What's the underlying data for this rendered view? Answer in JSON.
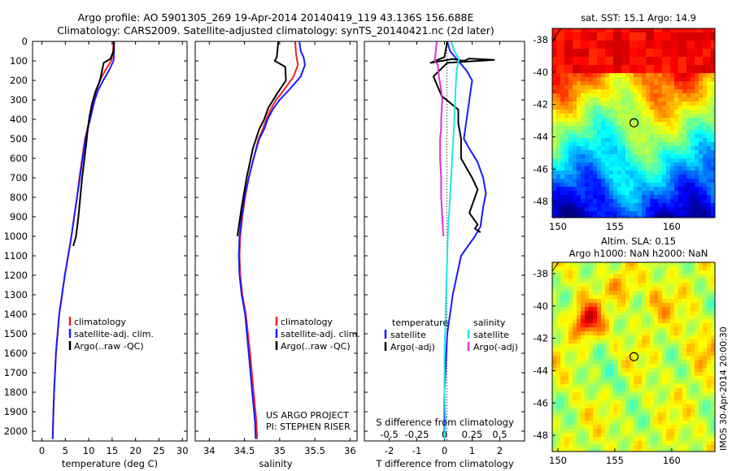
{
  "title": {
    "line1": "Argo profile: AO 5901305_269 19-Apr-2014 20140419_119 43.136S 156.688E",
    "line2": "Climatology: CARS2009. Satellite-adjusted climatology: synTS_20140421.nc (2d later)"
  },
  "colors": {
    "climatology": "#ee2222",
    "satellite": "#1a1aff",
    "argo": "#000000",
    "satellite_salinity": "#22e5e5",
    "argo_salinity": "#dd33dd"
  },
  "chart_data": [
    {
      "id": "temperature",
      "type": "line",
      "xlabel": "temperature (deg C)",
      "ylabel": "",
      "xlim": [
        -2,
        31
      ],
      "ylim": [
        2050,
        0
      ],
      "xticks": [
        0,
        5,
        10,
        15,
        20,
        25,
        30
      ],
      "yticks": [
        0,
        100,
        200,
        300,
        400,
        500,
        600,
        700,
        800,
        900,
        1000,
        1100,
        1200,
        1300,
        1400,
        1500,
        1600,
        1700,
        1800,
        1900,
        2000
      ],
      "legend": [
        "climatology",
        "satellite-adj. clim.",
        "Argo(..raw -QC)"
      ],
      "legend_position": "lower-right",
      "series": [
        {
          "name": "climatology",
          "color": "#ee2222",
          "x": [
            15.3,
            15.2,
            14.8,
            13.5,
            12.4,
            11.6,
            11.1,
            10.7,
            10.2,
            9.7,
            9.2,
            8.6,
            8.0,
            7.5,
            6.9,
            6.3,
            5.6,
            4.9,
            4.3,
            3.7,
            3.0,
            2.6,
            2.4,
            2.3
          ],
          "y": [
            0,
            50,
            100,
            150,
            200,
            250,
            300,
            350,
            400,
            450,
            500,
            600,
            700,
            800,
            900,
            1000,
            1100,
            1200,
            1300,
            1400,
            1600,
            1800,
            1950,
            2040
          ]
        },
        {
          "name": "satellite-adj. clim.",
          "color": "#1a1aff",
          "x": [
            15.4,
            15.4,
            15.3,
            14.3,
            13.1,
            12.0,
            11.3,
            10.8,
            10.3,
            9.8,
            9.3,
            8.7,
            8.1,
            7.5,
            6.9,
            6.3,
            5.6,
            4.9,
            4.3,
            3.7,
            3.0,
            2.6,
            2.4,
            2.3
          ],
          "y": [
            0,
            50,
            100,
            150,
            200,
            250,
            300,
            350,
            400,
            450,
            500,
            600,
            700,
            800,
            900,
            1000,
            1100,
            1200,
            1300,
            1400,
            1600,
            1800,
            1950,
            2040
          ]
        },
        {
          "name": "Argo(..raw -QC)",
          "color": "#000000",
          "x": [
            15.4,
            15.3,
            14.6,
            13.2,
            12.4,
            11.4,
            10.7,
            10.2,
            9.8,
            9.5,
            9.1,
            8.6,
            8.2,
            7.8,
            7.3,
            6.7
          ],
          "y": [
            0,
            50,
            90,
            110,
            200,
            260,
            320,
            380,
            450,
            520,
            600,
            700,
            800,
            900,
            1000,
            1050
          ]
        }
      ]
    },
    {
      "id": "salinity",
      "type": "line",
      "xlabel": "salinity",
      "ylabel": "",
      "xlim": [
        33.8,
        36.1
      ],
      "ylim": [
        2050,
        0
      ],
      "xticks": [
        34,
        34.5,
        35,
        35.5,
        36
      ],
      "legend": [
        "climatology",
        "satellite-adj. clim.",
        "Argo(..raw -QC)"
      ],
      "legend_position": "lower-right",
      "annotation": [
        "US ARGO PROJECT",
        "PI: STEPHEN RISER"
      ],
      "series": [
        {
          "name": "climatology",
          "color": "#ee2222",
          "x": [
            35.22,
            35.23,
            35.24,
            35.26,
            35.2,
            35.06,
            34.95,
            34.87,
            34.81,
            34.76,
            34.7,
            34.63,
            34.56,
            34.51,
            34.47,
            34.44,
            34.43,
            34.44,
            34.47,
            34.52,
            34.58,
            34.63,
            34.67,
            34.68
          ],
          "y": [
            0,
            50,
            80,
            120,
            180,
            250,
            300,
            350,
            400,
            450,
            500,
            600,
            700,
            800,
            900,
            1000,
            1100,
            1200,
            1300,
            1400,
            1600,
            1800,
            1950,
            2040
          ]
        },
        {
          "name": "satellite-adj. clim.",
          "color": "#1a1aff",
          "x": [
            35.28,
            35.3,
            35.34,
            35.36,
            35.3,
            35.13,
            35.0,
            34.9,
            34.83,
            34.78,
            34.71,
            34.63,
            34.56,
            34.5,
            34.46,
            34.43,
            34.42,
            34.43,
            34.46,
            34.51,
            34.56,
            34.61,
            34.65,
            34.66
          ],
          "y": [
            0,
            50,
            80,
            120,
            180,
            250,
            300,
            350,
            400,
            450,
            500,
            600,
            700,
            800,
            900,
            1000,
            1100,
            1200,
            1300,
            1400,
            1600,
            1800,
            1950,
            2040
          ]
        },
        {
          "name": "Argo(..raw -QC)",
          "color": "#000000",
          "x": [
            34.98,
            34.96,
            34.93,
            34.98,
            35.08,
            35.09,
            34.96,
            34.84,
            34.78,
            34.71,
            34.62,
            34.53,
            34.46,
            34.42,
            34.4
          ],
          "y": [
            0,
            80,
            100,
            110,
            130,
            200,
            270,
            340,
            400,
            450,
            550,
            700,
            850,
            950,
            1000
          ]
        }
      ]
    },
    {
      "id": "difference",
      "type": "line",
      "xlabel": "T difference from climatology",
      "xlabel_top": "S difference from climatology",
      "ylabel": "",
      "xlim": [
        -2.9,
        2.9
      ],
      "ylim": [
        2050,
        0
      ],
      "xticks": [
        -2,
        -1,
        0,
        1,
        2
      ],
      "s_xticks": [
        -0.5,
        -0.25,
        0,
        0.25,
        0.5
      ],
      "legend_groups": [
        {
          "title": "temperature",
          "items": [
            "satellite",
            "Argo(-adj)"
          ]
        },
        {
          "title": "salinity",
          "items": [
            "satellite",
            "Argo(-adj)"
          ]
        }
      ],
      "legend_position": "lower-center",
      "series": [
        {
          "name": "temperature satellite",
          "color": "#1a1aff",
          "x": [
            0.1,
            0.2,
            0.5,
            0.8,
            1.0,
            0.9,
            0.8,
            0.7,
            0.9,
            1.2,
            1.4,
            1.5,
            1.4,
            1.3,
            1.1,
            0.6,
            0.3,
            0.1,
            0.0,
            0.0
          ],
          "y": [
            0,
            50,
            100,
            150,
            200,
            300,
            400,
            500,
            550,
            620,
            700,
            780,
            850,
            950,
            1000,
            1100,
            1300,
            1500,
            1800,
            2040
          ]
        },
        {
          "name": "temperature Argo(-adj)",
          "color": "#000000",
          "x": [
            0.1,
            0.0,
            -0.5,
            0.3,
            0.7,
            0.9,
            1.8,
            0.1,
            -0.4,
            -0.1,
            0.5,
            0.5,
            0.6,
            0.6,
            0.8,
            1.0,
            1.2,
            1.1,
            1.0,
            0.9,
            1.2,
            1.1,
            1.3
          ],
          "y": [
            0,
            80,
            110,
            90,
            100,
            88,
            95,
            110,
            180,
            280,
            350,
            420,
            500,
            600,
            650,
            700,
            760,
            800,
            840,
            880,
            940,
            960,
            980
          ]
        },
        {
          "name": "salinity satellite",
          "color": "#22e5e5",
          "x": [
            0.06,
            0.09,
            0.13,
            0.11,
            0.1,
            0.09,
            0.07,
            0.05,
            0.03,
            0.02,
            0.01,
            0.0,
            0.0,
            0.01,
            0.0
          ],
          "y": [
            0,
            50,
            90,
            150,
            250,
            400,
            600,
            800,
            1000,
            1200,
            1400,
            1600,
            1800,
            1950,
            2040
          ]
        },
        {
          "name": "salinity Argo(-adj)",
          "color": "#dd33dd",
          "x": [
            -0.07,
            -0.08,
            -0.09,
            -0.06,
            -0.05,
            -0.03,
            -0.02,
            -0.03,
            -0.03,
            -0.04,
            -0.04,
            -0.03,
            -0.03,
            -0.02,
            -0.01
          ],
          "y": [
            0,
            60,
            100,
            120,
            180,
            250,
            300,
            400,
            450,
            500,
            600,
            700,
            800,
            900,
            1000
          ]
        }
      ]
    },
    {
      "id": "sst-map",
      "type": "heatmap",
      "title": "sat. SST: 15.1 Argo: 14.9",
      "xlim": [
        149.5,
        163.8
      ],
      "ylim": [
        -49,
        -37.3
      ],
      "xticks": [
        150,
        155,
        160
      ],
      "yticks": [
        -38,
        -40,
        -42,
        -44,
        -46,
        -48
      ],
      "argo_location": {
        "lon": 156.688,
        "lat": -43.136
      }
    },
    {
      "id": "sla-map",
      "type": "heatmap",
      "title": [
        "Altim. SLA: 0.15",
        "Argo h1000: NaN h2000: NaN"
      ],
      "xlim": [
        149.5,
        163.8
      ],
      "ylim": [
        -49,
        -37.3
      ],
      "xticks": [
        150,
        155,
        160
      ],
      "yticks": [
        -38,
        -40,
        -42,
        -44,
        -46,
        -48
      ],
      "argo_location": {
        "lon": 156.688,
        "lat": -43.136
      }
    }
  ],
  "side_label": "IMOS 30-Apr-2014 20:00:30"
}
